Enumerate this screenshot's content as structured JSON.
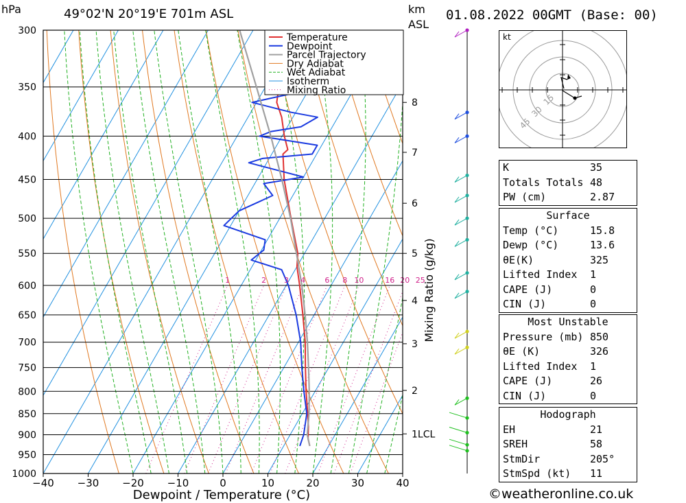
{
  "header": {
    "location": "49°02'N  20°19'E  701m  ASL",
    "datetime": "01.08.2022  00GMT  (Base: 00)",
    "hpa_label": "hPa",
    "km_label": "km",
    "asl_label": "ASL"
  },
  "legend": [
    "Temperature",
    "Dewpoint",
    "Parcel Trajectory",
    "Dry Adiabat",
    "Wet Adiabat",
    "Isotherm",
    "Mixing Ratio"
  ],
  "colors": {
    "temperature": "#e03030",
    "dewpoint": "#1a3ae0",
    "parcel": "#a0a0a0",
    "dry_adiabat": "#e07820",
    "wet_adiabat": "#20b020",
    "isotherm": "#2090e0",
    "mixing_ratio": "#d0208a"
  },
  "chart_data": {
    "type": "line",
    "title": "",
    "xlabel": "Dewpoint / Temperature (°C)",
    "ylabel": "hPa",
    "xlim": [
      -40,
      40
    ],
    "ylim": [
      1000,
      300
    ],
    "pressure_ticks": [
      300,
      350,
      400,
      450,
      500,
      550,
      600,
      650,
      700,
      750,
      800,
      850,
      900,
      950,
      1000
    ],
    "temp_ticks": [
      -40,
      -30,
      -20,
      -10,
      0,
      10,
      20,
      30,
      40
    ],
    "temp_tick_labels": [
      "−40",
      "−30",
      "−20",
      "−10",
      "0",
      "10",
      "20",
      "30",
      "40"
    ],
    "km_ticks": [
      {
        "label": "8",
        "p": 365
      },
      {
        "label": "7",
        "p": 418
      },
      {
        "label": "6",
        "p": 480
      },
      {
        "label": "5",
        "p": 550
      },
      {
        "label": "4",
        "p": 625
      },
      {
        "label": "3",
        "p": 703
      },
      {
        "label": "2",
        "p": 798
      },
      {
        "label": "1LCL",
        "p": 898
      }
    ],
    "mixing_ratio_axis_label": "Mixing Ratio (g/kg)",
    "mixing_ratio_labels": [
      "1",
      "2",
      "3",
      "4",
      "6",
      "8",
      "10",
      "16",
      "20",
      "25"
    ],
    "series": [
      {
        "name": "Temperature",
        "points": [
          [
            928,
            15.8
          ],
          [
            910,
            14.5
          ],
          [
            880,
            13.0
          ],
          [
            850,
            11.2
          ],
          [
            800,
            8.0
          ],
          [
            750,
            4.8
          ],
          [
            700,
            1.5
          ],
          [
            650,
            -2.5
          ],
          [
            600,
            -7.0
          ],
          [
            570,
            -10.0
          ],
          [
            550,
            -11.5
          ],
          [
            500,
            -17.5
          ],
          [
            450,
            -24.0
          ],
          [
            420,
            -27.5
          ],
          [
            415,
            -27.0
          ],
          [
            400,
            -29.5
          ],
          [
            380,
            -32.5
          ],
          [
            365,
            -35.5
          ],
          [
            350,
            -37.0
          ],
          [
            330,
            -40.5
          ],
          [
            300,
            -45.5
          ]
        ]
      },
      {
        "name": "Dewpoint",
        "points": [
          [
            928,
            13.6
          ],
          [
            900,
            13.0
          ],
          [
            850,
            11.0
          ],
          [
            800,
            7.5
          ],
          [
            750,
            4.0
          ],
          [
            700,
            0.5
          ],
          [
            650,
            -4.0
          ],
          [
            600,
            -9.5
          ],
          [
            575,
            -13.0
          ],
          [
            560,
            -21.0
          ],
          [
            545,
            -19.5
          ],
          [
            530,
            -20.5
          ],
          [
            510,
            -31.5
          ],
          [
            490,
            -30.0
          ],
          [
            470,
            -24.5
          ],
          [
            455,
            -28.0
          ],
          [
            447,
            -20.0
          ],
          [
            430,
            -34.0
          ],
          [
            425,
            -31.5
          ],
          [
            420,
            -21.0
          ],
          [
            410,
            -21.0
          ],
          [
            400,
            -35.0
          ],
          [
            395,
            -33.0
          ],
          [
            390,
            -27.0
          ],
          [
            380,
            -24.5
          ],
          [
            375,
            -31.0
          ],
          [
            365,
            -41.0
          ],
          [
            355,
            -32.0
          ],
          [
            300,
            -31.0
          ]
        ]
      },
      {
        "name": "Parcel Trajectory",
        "points": [
          [
            928,
            15.8
          ],
          [
            900,
            13.8
          ],
          [
            850,
            11.5
          ],
          [
            800,
            8.7
          ],
          [
            750,
            5.5
          ],
          [
            700,
            2.0
          ],
          [
            650,
            -2.0
          ],
          [
            600,
            -6.5
          ],
          [
            550,
            -11.8
          ],
          [
            500,
            -17.6
          ],
          [
            450,
            -24.5
          ],
          [
            400,
            -32.5
          ],
          [
            350,
            -42.0
          ],
          [
            300,
            -53.0
          ]
        ]
      }
    ],
    "wind_levels_hpa": [
      300,
      375,
      400,
      445,
      470,
      500,
      530,
      580,
      610,
      680,
      710,
      815,
      860,
      895,
      925,
      940
    ]
  },
  "hodograph": {
    "unit_label": "kt",
    "ring_labels": [
      "15",
      "30",
      "45"
    ]
  },
  "indices": {
    "rows": [
      {
        "label": "K",
        "value": "35"
      },
      {
        "label": "Totals Totals",
        "value": "48"
      },
      {
        "label": "PW (cm)",
        "value": "2.87"
      }
    ]
  },
  "surface": {
    "title": "Surface",
    "rows": [
      {
        "label": "Temp (°C)",
        "value": "15.8"
      },
      {
        "label": "Dewp (°C)",
        "value": "13.6"
      },
      {
        "label": "θE(K)",
        "value": "325"
      },
      {
        "label": "Lifted Index",
        "value": "1"
      },
      {
        "label": "CAPE (J)",
        "value": "0"
      },
      {
        "label": "CIN (J)",
        "value": "0"
      }
    ]
  },
  "most_unstable": {
    "title": "Most Unstable",
    "rows": [
      {
        "label": "Pressure (mb)",
        "value": "850"
      },
      {
        "label": "θE (K)",
        "value": "326"
      },
      {
        "label": "Lifted Index",
        "value": "1"
      },
      {
        "label": "CAPE (J)",
        "value": "26"
      },
      {
        "label": "CIN (J)",
        "value": "0"
      }
    ]
  },
  "hodo_stats": {
    "title": "Hodograph",
    "rows": [
      {
        "label": "EH",
        "value": "21"
      },
      {
        "label": "SREH",
        "value": "58"
      },
      {
        "label": "StmDir",
        "value": "205°"
      },
      {
        "label": "StmSpd (kt)",
        "value": "11"
      }
    ]
  },
  "footer": {
    "text": "©weatheronline.co.uk"
  }
}
